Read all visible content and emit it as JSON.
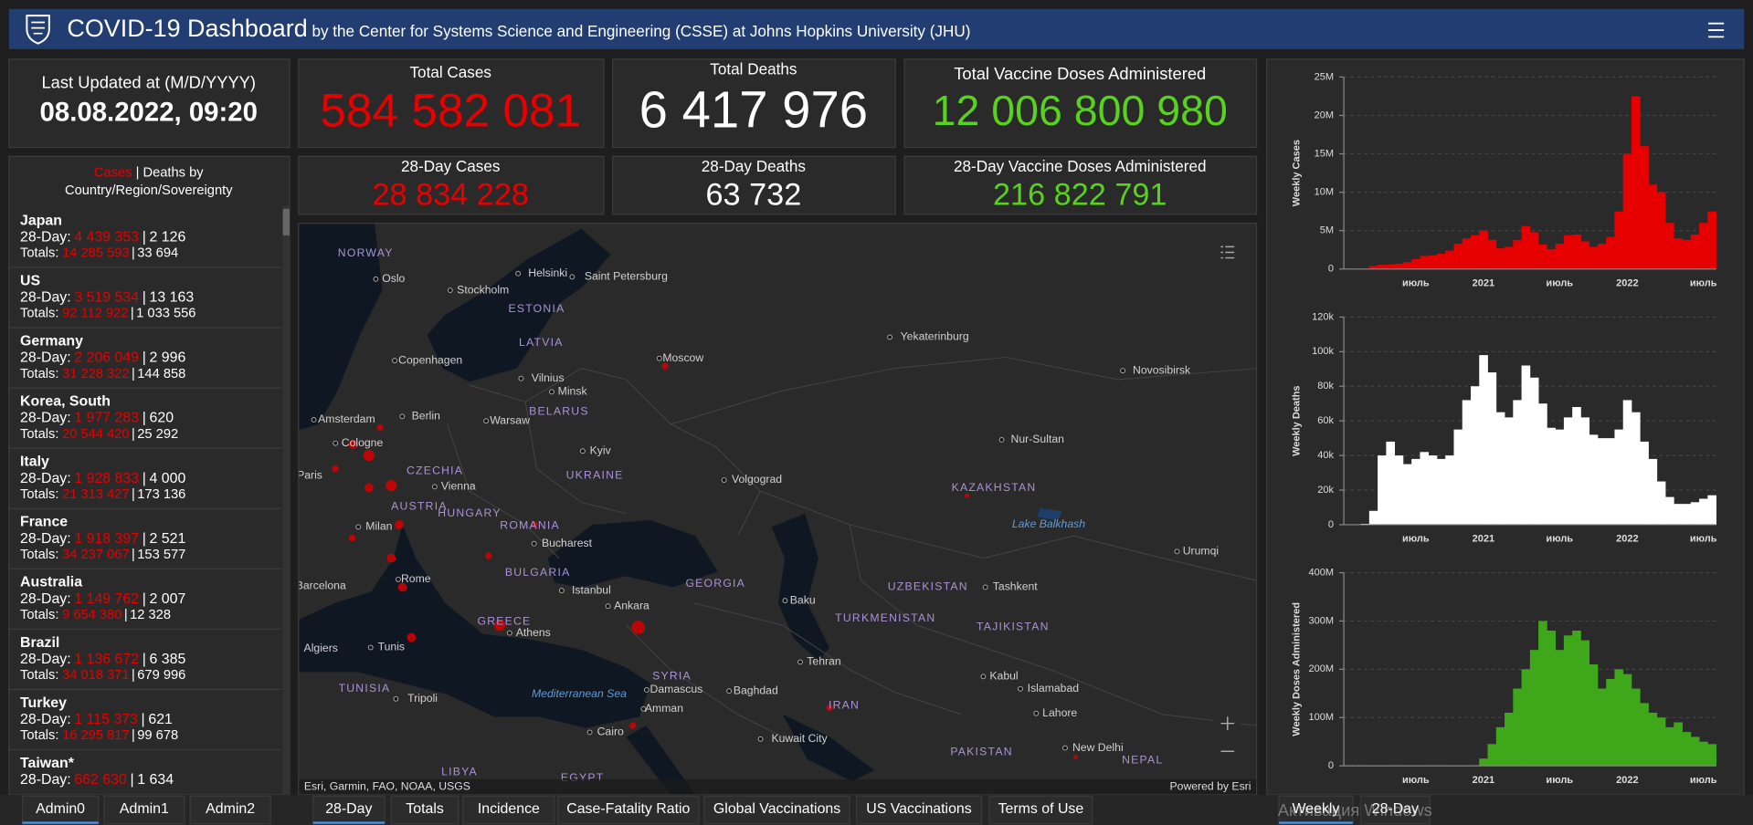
{
  "header": {
    "title": "COVID-19 Dashboard",
    "subtitle": "by the Center for Systems Science and Engineering (CSSE) at Johns Hopkins University (JHU)"
  },
  "stats": {
    "last_updated": {
      "label": "Last Updated at (M/D/YYYY)",
      "value": "08.08.2022, 09:20"
    },
    "total_cases": {
      "label": "Total Cases",
      "value": "584 582 081"
    },
    "total_deaths": {
      "label": "Total Deaths",
      "value": "6 417 976"
    },
    "total_vaccine": {
      "label": "Total Vaccine Doses Administered",
      "value": "12 006 800 980"
    },
    "day_cases": {
      "label": "28-Day Cases",
      "value": "28 834 228"
    },
    "day_deaths": {
      "label": "28-Day Deaths",
      "value": "63 732"
    },
    "day_vaccine": {
      "label": "28-Day Vaccine Doses Administered",
      "value": "216 822 791"
    }
  },
  "country_list": {
    "header": {
      "cases": "Cases",
      "separator": "|",
      "deaths": "Deaths by",
      "region": "Country/Region/Sovereignty"
    },
    "day_label": "28-Day:",
    "totals_label": "Totals:",
    "separator": "|",
    "rows": [
      {
        "name": "Japan",
        "day_cases": "4 439 353",
        "day_deaths": "2 126",
        "total_cases": "14 285 593",
        "total_deaths": "33 694"
      },
      {
        "name": "US",
        "day_cases": "3 519 534",
        "day_deaths": "13 163",
        "total_cases": "92 112 922",
        "total_deaths": "1 033 556"
      },
      {
        "name": "Germany",
        "day_cases": "2 206 049",
        "day_deaths": "2 996",
        "total_cases": "31 228 322",
        "total_deaths": "144 858"
      },
      {
        "name": "Korea, South",
        "day_cases": "1 977 283",
        "day_deaths": "620",
        "total_cases": "20 544 420",
        "total_deaths": "25 292"
      },
      {
        "name": "Italy",
        "day_cases": "1 928 833",
        "day_deaths": "4 000",
        "total_cases": "21 313 427",
        "total_deaths": "173 136"
      },
      {
        "name": "France",
        "day_cases": "1 918 397",
        "day_deaths": "2 521",
        "total_cases": "34 237 067",
        "total_deaths": "153 577"
      },
      {
        "name": "Australia",
        "day_cases": "1 149 762",
        "day_deaths": "2 007",
        "total_cases": "9 654 380",
        "total_deaths": "12 328"
      },
      {
        "name": "Brazil",
        "day_cases": "1 136 672",
        "day_deaths": "6 385",
        "total_cases": "34 018 371",
        "total_deaths": "679 996"
      },
      {
        "name": "Turkey",
        "day_cases": "1 115 373",
        "day_deaths": "621",
        "total_cases": "16 295 817",
        "total_deaths": "99 678"
      },
      {
        "name": "Taiwan*",
        "day_cases": "662 630",
        "day_deaths": "1 634"
      }
    ]
  },
  "map": {
    "labels": [
      {
        "text": "NORWAY",
        "kind": "country"
      },
      {
        "text": "Oslo",
        "kind": "city"
      },
      {
        "text": "Helsinki",
        "kind": "city"
      },
      {
        "text": "Saint Petersburg",
        "kind": "city"
      },
      {
        "text": "Stockholm",
        "kind": "city"
      },
      {
        "text": "ESTONIA",
        "kind": "country"
      },
      {
        "text": "LATVIA",
        "kind": "country"
      },
      {
        "text": "Copenhagen",
        "kind": "city"
      },
      {
        "text": "Moscow",
        "kind": "city"
      },
      {
        "text": "Vilnius",
        "kind": "city"
      },
      {
        "text": "Minsk",
        "kind": "city"
      },
      {
        "text": "BELARUS",
        "kind": "country"
      },
      {
        "text": "Amsterdam",
        "kind": "city"
      },
      {
        "text": "Berlin",
        "kind": "city"
      },
      {
        "text": "Warsaw",
        "kind": "city"
      },
      {
        "text": "Cologne",
        "kind": "city"
      },
      {
        "text": "Kyiv",
        "kind": "city"
      },
      {
        "text": "CZECHIA",
        "kind": "country"
      },
      {
        "text": "UKRAINE",
        "kind": "country"
      },
      {
        "text": "Paris",
        "kind": "city"
      },
      {
        "text": "Vienna",
        "kind": "city"
      },
      {
        "text": "Volgograd",
        "kind": "city"
      },
      {
        "text": "AUSTRIA",
        "kind": "country"
      },
      {
        "text": "HUNGARY",
        "kind": "country"
      },
      {
        "text": "ROMANIA",
        "kind": "country"
      },
      {
        "text": "Milan",
        "kind": "city"
      },
      {
        "text": "Bucharest",
        "kind": "city"
      },
      {
        "text": "BULGARIA",
        "kind": "country"
      },
      {
        "text": "Barcelona",
        "kind": "city"
      },
      {
        "text": "Rome",
        "kind": "city"
      },
      {
        "text": "Istanbul",
        "kind": "city"
      },
      {
        "text": "GEORGIA",
        "kind": "country"
      },
      {
        "text": "Ankara",
        "kind": "city"
      },
      {
        "text": "Baku",
        "kind": "city"
      },
      {
        "text": "GREECE",
        "kind": "country"
      },
      {
        "text": "Athens",
        "kind": "city"
      },
      {
        "text": "Algiers",
        "kind": "city"
      },
      {
        "text": "Tunis",
        "kind": "city"
      },
      {
        "text": "TURKMENISTAN",
        "kind": "country"
      },
      {
        "text": "Tehran",
        "kind": "city"
      },
      {
        "text": "SYRIA",
        "kind": "country"
      },
      {
        "text": "Damascus",
        "kind": "city"
      },
      {
        "text": "Baghdad",
        "kind": "city"
      },
      {
        "text": "Mediterranean Sea",
        "kind": "water"
      },
      {
        "text": "TUNISIA",
        "kind": "country"
      },
      {
        "text": "Tripoli",
        "kind": "city"
      },
      {
        "text": "Amman",
        "kind": "city"
      },
      {
        "text": "IRAN",
        "kind": "country"
      },
      {
        "text": "Cairo",
        "kind": "city"
      },
      {
        "text": "Kuwait City",
        "kind": "city"
      },
      {
        "text": "LIBYA",
        "kind": "country"
      },
      {
        "text": "EGYPT",
        "kind": "country"
      },
      {
        "text": "Yekaterinburg",
        "kind": "city"
      },
      {
        "text": "Novosibirsk",
        "kind": "city"
      },
      {
        "text": "Nur-Sultan",
        "kind": "city"
      },
      {
        "text": "KAZAKHSTAN",
        "kind": "country"
      },
      {
        "text": "Lake Balkhash",
        "kind": "water"
      },
      {
        "text": "Urumqi",
        "kind": "city"
      },
      {
        "text": "UZBEKISTAN",
        "kind": "country"
      },
      {
        "text": "Tashkent",
        "kind": "city"
      },
      {
        "text": "TAJIKISTAN",
        "kind": "country"
      },
      {
        "text": "Kabul",
        "kind": "city"
      },
      {
        "text": "Islamabad",
        "kind": "city"
      },
      {
        "text": "Lahore",
        "kind": "city"
      },
      {
        "text": "PAKISTAN",
        "kind": "country"
      },
      {
        "text": "New Delhi",
        "kind": "city"
      },
      {
        "text": "NEPAL",
        "kind": "country"
      }
    ],
    "attribution": "Esri, Garmin, FAO, NOAA, USGS",
    "powered_by": "Powered by Esri"
  },
  "chart_data": [
    {
      "type": "bar",
      "ylabel": "Weekly Cases",
      "color": "#e60000",
      "grid": true,
      "categories": [
        null,
        null,
        null,
        null,
        null,
        null,
        null,
        null,
        "июль",
        null,
        null,
        null,
        null,
        null,
        null,
        null,
        "2021",
        null,
        null,
        null,
        null,
        null,
        null,
        null,
        null,
        "июль",
        null,
        null,
        null,
        null,
        null,
        null,
        null,
        "2022",
        null,
        null,
        null,
        null,
        null,
        null,
        null,
        null,
        "июль",
        null
      ],
      "values": [
        0,
        10000,
        50000,
        400000,
        550000,
        600000,
        700000,
        900000,
        1300000,
        1700000,
        1800000,
        2000000,
        2400000,
        3300000,
        4000000,
        4400000,
        5000000,
        3800000,
        2700000,
        2900000,
        3800000,
        5600000,
        4800000,
        3200000,
        2600000,
        3300000,
        4400000,
        4500000,
        3600000,
        2900000,
        3300000,
        4200000,
        7500000,
        15000000,
        22500000,
        16000000,
        11000000,
        10000000,
        6000000,
        4000000,
        3800000,
        4500000,
        6000000,
        7500000
      ],
      "ylim": [
        0,
        25000000
      ],
      "yticks": [
        0,
        {
          "value": 5000000,
          "label": "5M"
        },
        {
          "value": 10000000,
          "label": "10M"
        },
        {
          "value": 15000000,
          "label": "15M"
        },
        {
          "value": 20000000,
          "label": "20M"
        },
        {
          "value": 25000000,
          "label": "25M"
        }
      ]
    },
    {
      "type": "bar",
      "ylabel": "Weekly Deaths",
      "color": "#ffffff",
      "grid": true,
      "categories": [
        null,
        null,
        null,
        null,
        null,
        null,
        null,
        null,
        "июль",
        null,
        null,
        null,
        null,
        null,
        null,
        null,
        "2021",
        null,
        null,
        null,
        null,
        null,
        null,
        null,
        null,
        "июль",
        null,
        null,
        null,
        null,
        null,
        null,
        null,
        "2022",
        null,
        null,
        null,
        null,
        null,
        null,
        null,
        null,
        "июль",
        null
      ],
      "values": [
        0,
        50,
        500,
        8000,
        40000,
        48000,
        40000,
        35000,
        38000,
        42000,
        40000,
        38000,
        40000,
        55000,
        72000,
        80000,
        98000,
        88000,
        65000,
        62000,
        72000,
        92000,
        85000,
        70000,
        56000,
        55000,
        62000,
        68000,
        62000,
        52000,
        50000,
        50000,
        55000,
        72000,
        65000,
        48000,
        38000,
        25000,
        16000,
        12000,
        12000,
        13000,
        15000,
        17000
      ],
      "ylim": [
        0,
        120000
      ],
      "yticks": [
        0,
        {
          "value": 20000,
          "label": "20k"
        },
        {
          "value": 40000,
          "label": "40k"
        },
        {
          "value": 60000,
          "label": "60k"
        },
        {
          "value": 80000,
          "label": "80k"
        },
        {
          "value": 100000,
          "label": "100k"
        },
        {
          "value": 120000,
          "label": "120k"
        }
      ]
    },
    {
      "type": "bar",
      "ylabel": "Weekly Doses Administered",
      "color": "#3fa81a",
      "grid": true,
      "categories": [
        null,
        null,
        null,
        null,
        null,
        null,
        null,
        null,
        "июль",
        null,
        null,
        null,
        null,
        null,
        null,
        null,
        "2021",
        null,
        null,
        null,
        null,
        null,
        null,
        null,
        null,
        "июль",
        null,
        null,
        null,
        null,
        null,
        null,
        null,
        "2022",
        null,
        null,
        null,
        null,
        null,
        null,
        null,
        null,
        "июль",
        null
      ],
      "values": [
        0,
        0,
        0,
        0,
        0,
        0,
        0,
        0,
        0,
        0,
        0,
        0,
        0,
        0,
        0,
        1000000,
        15000000,
        45000000,
        80000000,
        110000000,
        160000000,
        200000000,
        240000000,
        300000000,
        280000000,
        240000000,
        270000000,
        280000000,
        260000000,
        210000000,
        160000000,
        180000000,
        200000000,
        190000000,
        160000000,
        130000000,
        110000000,
        100000000,
        80000000,
        90000000,
        70000000,
        60000000,
        50000000,
        45000000
      ],
      "ylim": [
        0,
        400000000
      ],
      "yticks": [
        0,
        {
          "value": 100000000,
          "label": "100M"
        },
        {
          "value": 200000000,
          "label": "200M"
        },
        {
          "value": 300000000,
          "label": "300M"
        },
        {
          "value": 400000000,
          "label": "400M"
        }
      ]
    }
  ],
  "tabs": {
    "left": [
      "Admin0",
      "Admin1",
      "Admin2"
    ],
    "middle": [
      "28-Day",
      "Totals",
      "Incidence",
      "Case-Fatality Ratio",
      "Global Vaccinations",
      "US Vaccinations",
      "Terms of Use"
    ],
    "right": [
      "Weekly",
      "28-Day"
    ]
  },
  "watermark": "Активация Windows"
}
